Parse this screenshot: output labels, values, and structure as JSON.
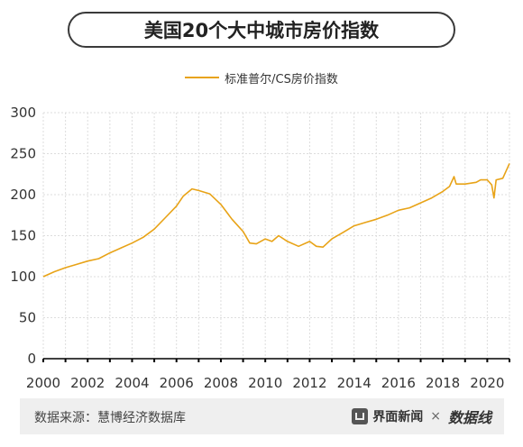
{
  "title": "美国20个大中城市房价指数",
  "legend": {
    "label": "标准普尔/CS房价指数",
    "color": "#e8a317"
  },
  "footer": {
    "source": "数据来源：慧博经济数据库",
    "brand_name": "界面新闻",
    "separator": "×",
    "brand_logo": "数据线"
  },
  "colors": {
    "line": "#e8a317",
    "grid": "#dddddd",
    "axis": "#000000",
    "text": "#333333",
    "footer_bg": "#efefef"
  },
  "chart_data": {
    "type": "line",
    "title": "美国20个大中城市房价指数",
    "xlabel": "",
    "ylabel": "",
    "xlim": [
      2000,
      2021
    ],
    "ylim": [
      0,
      300
    ],
    "yticks": [
      0,
      50,
      100,
      150,
      200,
      250,
      300
    ],
    "xticks": [
      2000,
      2002,
      2004,
      2006,
      2008,
      2010,
      2012,
      2014,
      2016,
      2018,
      2020
    ],
    "grid": true,
    "legend_position": "top-center",
    "series": [
      {
        "name": "标准普尔/CS房价指数",
        "points": [
          [
            2000.0,
            100
          ],
          [
            2000.5,
            106
          ],
          [
            2001.0,
            111
          ],
          [
            2001.5,
            115
          ],
          [
            2002.0,
            119
          ],
          [
            2002.5,
            122
          ],
          [
            2003.0,
            129
          ],
          [
            2003.5,
            135
          ],
          [
            2004.0,
            141
          ],
          [
            2004.5,
            148
          ],
          [
            2005.0,
            158
          ],
          [
            2005.5,
            172
          ],
          [
            2006.0,
            186
          ],
          [
            2006.3,
            198
          ],
          [
            2006.7,
            207
          ],
          [
            2007.0,
            205
          ],
          [
            2007.5,
            201
          ],
          [
            2008.0,
            188
          ],
          [
            2008.5,
            170
          ],
          [
            2009.0,
            155
          ],
          [
            2009.3,
            141
          ],
          [
            2009.6,
            140
          ],
          [
            2010.0,
            146
          ],
          [
            2010.3,
            143
          ],
          [
            2010.6,
            150
          ],
          [
            2011.0,
            143
          ],
          [
            2011.5,
            137
          ],
          [
            2012.0,
            143
          ],
          [
            2012.3,
            137
          ],
          [
            2012.6,
            136
          ],
          [
            2013.0,
            146
          ],
          [
            2013.5,
            154
          ],
          [
            2014.0,
            162
          ],
          [
            2014.5,
            166
          ],
          [
            2015.0,
            170
          ],
          [
            2015.5,
            175
          ],
          [
            2016.0,
            181
          ],
          [
            2016.5,
            184
          ],
          [
            2017.0,
            190
          ],
          [
            2017.5,
            196
          ],
          [
            2018.0,
            204
          ],
          [
            2018.3,
            210
          ],
          [
            2018.5,
            222
          ],
          [
            2018.6,
            213
          ],
          [
            2019.0,
            213
          ],
          [
            2019.5,
            215
          ],
          [
            2019.7,
            218
          ],
          [
            2020.0,
            218
          ],
          [
            2020.2,
            212
          ],
          [
            2020.3,
            196
          ],
          [
            2020.4,
            218
          ],
          [
            2020.7,
            220
          ],
          [
            2021.0,
            238
          ]
        ]
      }
    ]
  }
}
